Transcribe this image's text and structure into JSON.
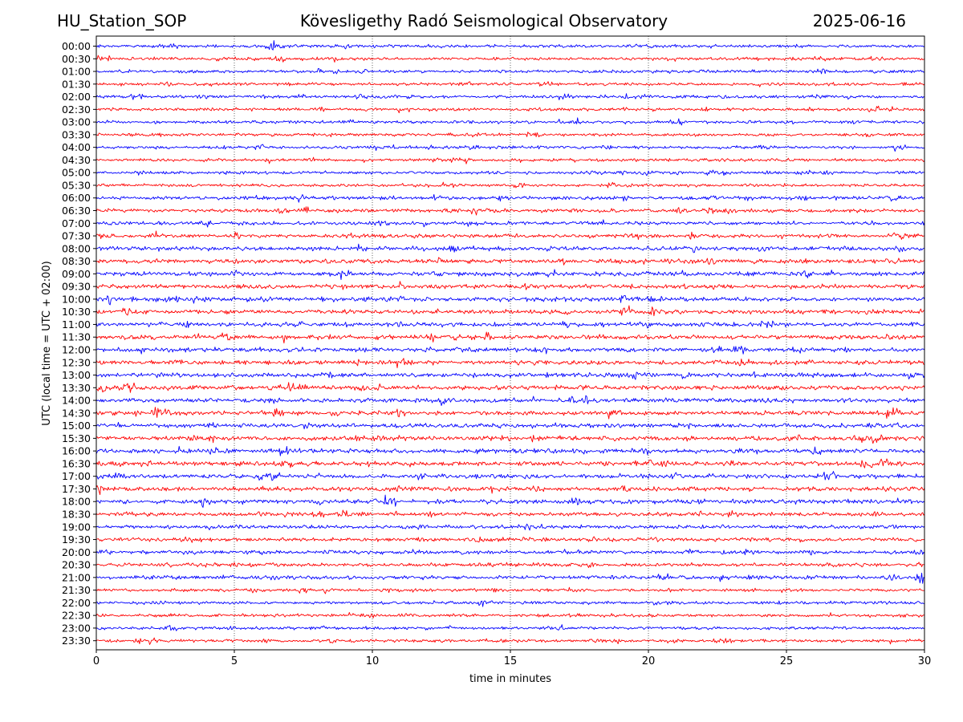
{
  "header": {
    "station": "HU_Station_SOP",
    "observatory": "Kövesligethy Radó Seismological Observatory",
    "date": "2025-06-16"
  },
  "chart_data": {
    "type": "line",
    "title": "Kövesligethy Radó Seismological Observatory",
    "xlabel": "time in minutes",
    "ylabel": "UTC (local time = UTC + 02:00)",
    "xlim": [
      0,
      30
    ],
    "xticks": [
      0,
      5,
      10,
      15,
      20,
      25,
      30
    ],
    "grid": "vertical dotted at x ticks",
    "row_labels": [
      "00:00",
      "00:30",
      "01:00",
      "01:30",
      "02:00",
      "02:30",
      "03:00",
      "03:30",
      "04:00",
      "04:30",
      "05:00",
      "05:30",
      "06:00",
      "06:30",
      "07:00",
      "07:30",
      "08:00",
      "08:30",
      "09:00",
      "09:30",
      "10:00",
      "10:30",
      "11:00",
      "11:30",
      "12:00",
      "12:30",
      "13:00",
      "13:30",
      "14:00",
      "14:30",
      "15:00",
      "15:30",
      "16:00",
      "16:30",
      "17:00",
      "17:30",
      "18:00",
      "18:30",
      "19:00",
      "19:30",
      "20:00",
      "20:30",
      "21:00",
      "21:30",
      "22:00",
      "22:30",
      "23:00",
      "23:30"
    ],
    "trace_colors": [
      "#0000ff",
      "#ff0000"
    ],
    "notable_events": [
      {
        "row": "14:30",
        "minute": 2.3
      },
      {
        "row": "10:30",
        "minute": 19.2
      },
      {
        "row": "00:00",
        "minute": 6.4
      },
      {
        "row": "21:00",
        "minute": 29.9
      }
    ]
  }
}
